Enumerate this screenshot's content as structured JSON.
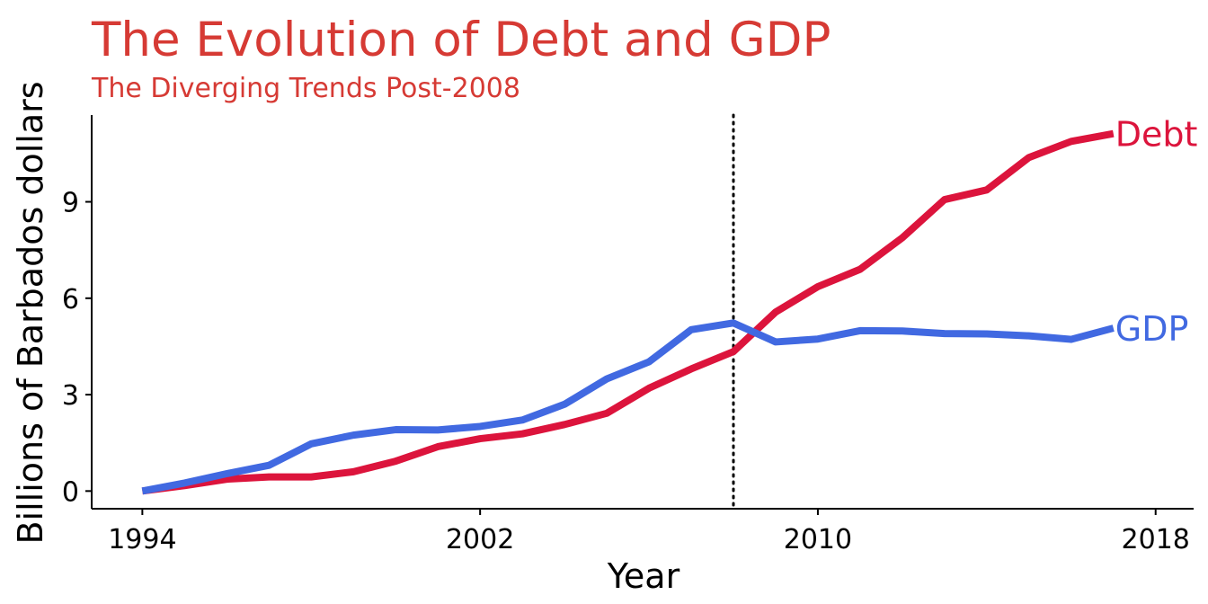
{
  "chart_data": {
    "type": "line",
    "title": "The Evolution of Debt and GDP",
    "subtitle": "The Diverging Trends Post-2008",
    "xlabel": "Year",
    "ylabel": "Billions of Barbados dollars",
    "xlim": [
      1992.8,
      2018.9
    ],
    "ylim": [
      -0.55,
      11.7
    ],
    "x_ticks": [
      1994,
      2002,
      2010,
      2018
    ],
    "y_ticks": [
      0,
      3,
      6,
      9
    ],
    "grid": false,
    "reference_line": {
      "x": 2008,
      "style": "dotted"
    },
    "x": [
      1994,
      1995,
      1996,
      1997,
      1998,
      1999,
      2000,
      2001,
      2002,
      2003,
      2004,
      2005,
      2006,
      2007,
      2008,
      2009,
      2010,
      2011,
      2012,
      2013,
      2014,
      2015,
      2016,
      2017
    ],
    "series": [
      {
        "name": "Debt",
        "color": "#dc143c",
        "values": [
          0.0,
          0.17,
          0.37,
          0.44,
          0.44,
          0.6,
          0.93,
          1.38,
          1.63,
          1.78,
          2.07,
          2.42,
          3.2,
          3.8,
          4.34,
          5.57,
          6.36,
          6.9,
          7.88,
          9.07,
          9.37,
          10.38,
          10.88,
          11.12
        ]
      },
      {
        "name": "GDP",
        "color": "#4169e1",
        "values": [
          0.0,
          0.25,
          0.54,
          0.8,
          1.47,
          1.74,
          1.91,
          1.9,
          2.01,
          2.21,
          2.7,
          3.49,
          4.02,
          5.02,
          5.23,
          4.64,
          4.73,
          4.99,
          4.98,
          4.9,
          4.89,
          4.83,
          4.72,
          5.07
        ]
      }
    ]
  }
}
